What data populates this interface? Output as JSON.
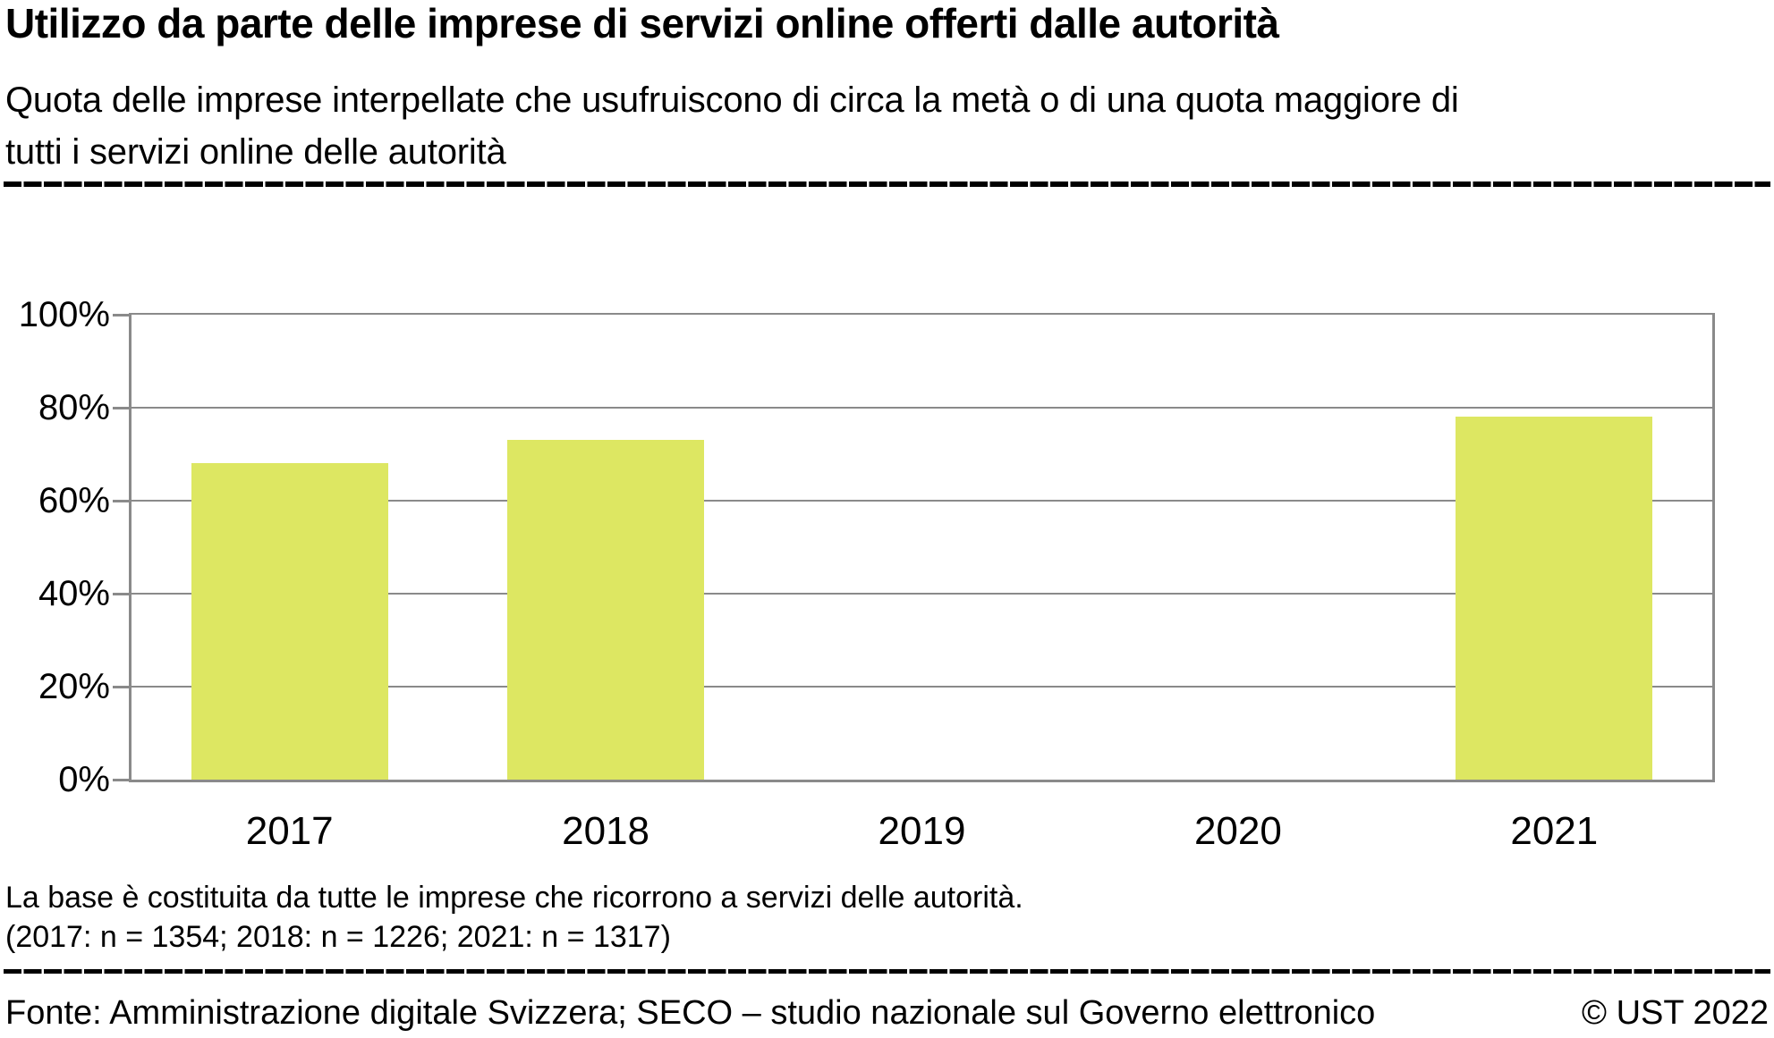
{
  "header": {
    "title": "Utilizzo da parte delle imprese di servizi online offerti dalle autorità",
    "subtitle_line1": "Quota delle imprese interpellate che usufruiscono di circa la metà o di una quota maggiore di",
    "subtitle_line2": "tutti i servizi online delle autorità"
  },
  "chart_data": {
    "type": "bar",
    "title": "Utilizzo da parte delle imprese di servizi online offerti dalle autorità",
    "categories": [
      "2017",
      "2018",
      "2019",
      "2020",
      "2021"
    ],
    "values": [
      68,
      73,
      null,
      null,
      78
    ],
    "unit": "%",
    "ylim": [
      0,
      100
    ],
    "yticks": [
      {
        "label": "0%",
        "value": 0
      },
      {
        "label": "20%",
        "value": 20
      },
      {
        "label": "40%",
        "value": 40
      },
      {
        "label": "60%",
        "value": 60
      },
      {
        "label": "80%",
        "value": 80
      },
      {
        "label": "100%",
        "value": 100
      }
    ],
    "grid": true,
    "legend": false,
    "sample_sizes": {
      "2017": 1354,
      "2018": 1226,
      "2021": 1317
    }
  },
  "style": {
    "bar_color": "#dde762",
    "grid_color": "#8a8a8a",
    "rule_color": "#000000",
    "text_color": "#000000"
  },
  "footnotes": {
    "line1": "La base è costituita da tutte le imprese che ricorrono a servizi delle autorità.",
    "line2": "(2017: n = 1354; 2018: n = 1226; 2021: n = 1317)"
  },
  "footer": {
    "source": "Fonte: Amministrazione digitale Svizzera; SECO – studio nazionale sul Governo elettronico",
    "copyright": "© UST 2022"
  }
}
